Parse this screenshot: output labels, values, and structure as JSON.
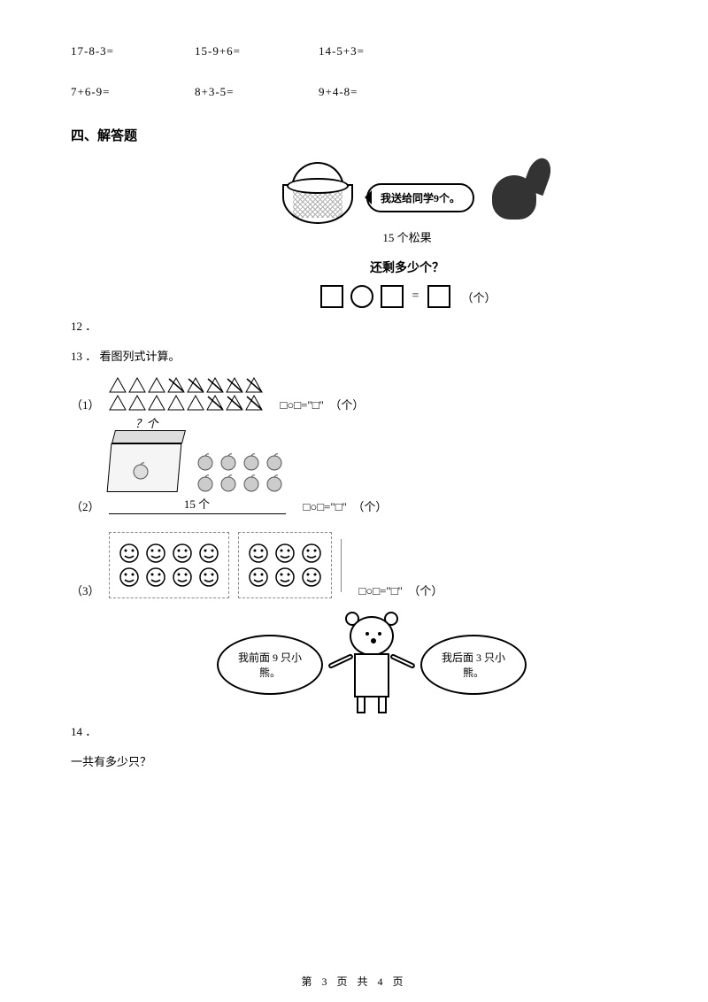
{
  "equations": {
    "row1": {
      "a": "17-8-3=",
      "b": "15-9+6=",
      "c": "14-5+3="
    },
    "row2": {
      "a": "7+6-9=",
      "b": "8+3-5=",
      "c": "9+4-8="
    }
  },
  "section4_title": "四、解答题",
  "q12": {
    "caption": "15 个松果",
    "bubble": "我送给同学9个。",
    "question": "还剩多少个？",
    "unit": "（个）",
    "num": "12 ．"
  },
  "q13": {
    "num": "13 ．",
    "title": "看图列式计算。",
    "sub1_label": "（1）",
    "sub2_label": "（2）",
    "sub3_label": "（3）",
    "formula": "□○□=\"□\"　（个）",
    "box_total": "15 个",
    "box_qmark": "？个"
  },
  "q14": {
    "num": "14 ．",
    "left_speech": "我前面 9 只小熊。",
    "right_speech": "我后面 3 只小熊。",
    "question": "一共有多少只？"
  },
  "footer": "第 3 页 共 4 页",
  "colors": {
    "text": "#000000",
    "bg": "#ffffff",
    "gray_fill": "#cccccc",
    "dash_border": "#888888"
  },
  "triangles": {
    "row1_total": 8,
    "row1_crossed": 5,
    "row2_total": 8,
    "row2_crossed": 3
  },
  "apples": {
    "visible": 8,
    "total_label": "15 个"
  },
  "smileys": {
    "left_rows": 2,
    "left_cols": 4,
    "right_rows": 2,
    "right_cols": 3
  }
}
